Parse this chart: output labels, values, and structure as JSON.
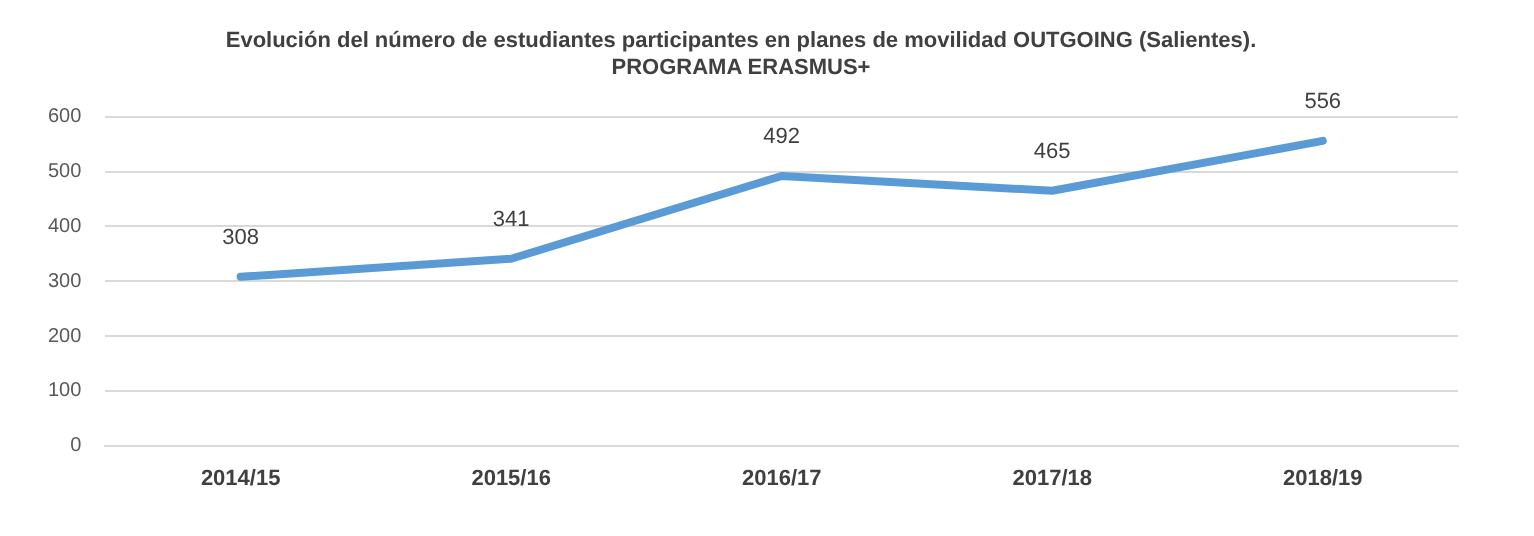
{
  "chart_data": {
    "type": "line",
    "title": [
      "Evolución del número de estudiantes participantes en planes de movilidad OUTGOING (Salientes).",
      "PROGRAMA ERASMUS+"
    ],
    "categories": [
      "2014/15",
      "2015/16",
      "2016/17",
      "2017/18",
      "2018/19"
    ],
    "series": [
      {
        "color": "#5b9bd5",
        "values": [
          308,
          341,
          492,
          465,
          556
        ]
      }
    ],
    "ylim": [
      0,
      600
    ],
    "yticks": [
      0,
      100,
      200,
      300,
      400,
      500,
      600
    ],
    "grid": "y",
    "legend": false,
    "marker": "none",
    "line_style": "solid",
    "data_labels": true
  }
}
